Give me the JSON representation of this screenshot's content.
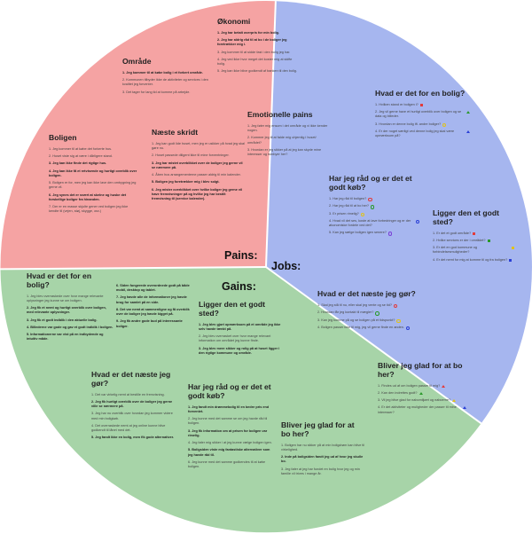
{
  "colors": {
    "pains": "#f5a3a3",
    "jobs": "#a6b6ef",
    "gains": "#a7d4a8",
    "divider": "#ffffff"
  },
  "sections": {
    "pains_label": "Pains:",
    "jobs_label": "Jobs:",
    "gains_label": "Gains:"
  },
  "blocks": [
    {
      "key": "okonomi",
      "title": "Økonomi",
      "items": [
        {
          "text": "1. Jeg har betalt overpris for min bolig.",
          "bold": true
        },
        {
          "text": "2. Jeg har aldrig råd til at bo i de boliger jeg foretrækker mig i.",
          "bold": true
        },
        {
          "text": "3. Jeg kommer til at sidde fast i den bolig jeg har.",
          "bold": false
        },
        {
          "text": "4. Jeg ved ikke hvor meget det koster mig at skifte bolig.",
          "bold": false
        },
        {
          "text": "5. Jeg kan ikke blive godkendt af banken til den bolig.",
          "bold": false
        }
      ]
    },
    {
      "key": "omrade",
      "title": "Område",
      "items": [
        {
          "text": "1. Jeg kommer til at købe bolig i et forkert område.",
          "bold": true
        },
        {
          "text": "2. Kommunen tilbyder ikke de aktiviteter og services i den kvalitet jeg forventer.",
          "bold": false
        },
        {
          "text": "3. Det tager for lang tid at komme på arbejde.",
          "bold": false
        }
      ]
    },
    {
      "key": "emotionelle",
      "title": "Emotionelle pains",
      "items": [
        {
          "text": "1. Jeg føler mig ensom i det område og vi ikke kender nogen.",
          "bold": false
        },
        {
          "text": "2. Kommer jeg til at falde mig uhjemlig i huset/ området?",
          "bold": false
        },
        {
          "text": "3. Hvordan er jeg sikker på at jeg kan skyde mine interesser og hobbyer her?",
          "bold": false
        }
      ]
    },
    {
      "key": "boligen",
      "title": "Boligen",
      "items": [
        {
          "text": "1. Jeg kommer til at købe det forkerte hus.",
          "bold": false
        },
        {
          "text": "2. Huset viste sig at være i dårligere stand.",
          "bold": false
        },
        {
          "text": "3. Jeg kan ikke finde det rigtige hus.",
          "bold": true
        },
        {
          "text": "4. Jeg kan ikke få et retvisende og hurtigt overblik over boligen.",
          "bold": true
        },
        {
          "text": "5. Boligen er for, men jeg kan ikke lave den ombygning jeg gerne vil.",
          "bold": false
        },
        {
          "text": "6. Jeg synes det er svært at skelne og huske det forskellige boliger fra hinanden.",
          "bold": true
        },
        {
          "text": "7. Der er en masse skjulte gener ved boligen jeg ikke kendte til (vejen, støj, skygge, osv.)",
          "bold": false
        }
      ]
    },
    {
      "key": "naeste-skridt",
      "title": "Næste skridt",
      "items": [
        {
          "text": "1. Jeg kan godt lide huset, men jeg er usikker på hvad jeg skal gøre nu.",
          "bold": false
        },
        {
          "text": "2. Huset passede diligent ikke til mine forventninger.",
          "bold": false
        },
        {
          "text": "3. Jeg har mistet overblikket over de boliger jeg gerne vil se nærmere på.",
          "bold": true
        },
        {
          "text": "4. Åben hus arrangementerne passer aldrig til min kalender.",
          "bold": false
        },
        {
          "text": "5. Boligen jeg foretrækker mig i blev solgt.",
          "bold": true
        },
        {
          "text": "6. Jeg mister overblikket over hvilke boliger jeg gerne vil have fremvisninger på og hvilke jeg har bestilt fremvisning til (service kalender).",
          "bold": true
        }
      ]
    },
    {
      "key": "hvad-er-det-for-en-bolig-jobs",
      "title": "Hvad er det for en bolig?",
      "items": [
        {
          "text": "1. Hvilken stand er boligen i?",
          "mark": "#e23b3b",
          "shape": "sq"
        },
        {
          "text": "2. Jeg vil gerne have et hurtigt overblik over boligen og se data og billeder.",
          "mark": "#2a9a2a",
          "shape": "tri"
        },
        {
          "text": "3. Hvordan er denne bolig ift. andre boliger?",
          "mark": "#e0c21a",
          "shape": "c"
        },
        {
          "text": "4. Er der noget særligt ved denne bolig jeg skal være opmærksom på?",
          "mark": "#2a3fd6",
          "shape": "tri"
        }
      ]
    },
    {
      "key": "har-jeg-rad",
      "title": "Har jeg råd og er det et godt køb?",
      "items": [
        {
          "text": "1. Har jeg råd til boligen?",
          "mark": "#e23b3b",
          "shape": "c"
        },
        {
          "text": "2. Har jeg råd til at bo her?",
          "mark": "#2a9a2a",
          "shape": "c"
        },
        {
          "text": "3. Er prisen rimelig?",
          "mark": "#e0c21a",
          "shape": "c"
        },
        {
          "text": "4. Hvad vil det ses, koste at lave forbedringer og er der økonomiske fordele ved det?",
          "mark": "#2a3fd6",
          "shape": "c"
        },
        {
          "text": "5. Kan jeg sælge boligen igen senere?",
          "mark": "#7a3fd6",
          "shape": "c"
        }
      ]
    },
    {
      "key": "ligger-den-godt-jobs",
      "title": "Ligger den et godt sted?",
      "items": [
        {
          "text": "1. Er det et godt område?",
          "mark": "#e23b3b",
          "shape": "sq"
        },
        {
          "text": "2. Hvilke services er der i området?",
          "mark": "#2a9a2a",
          "shape": "sq"
        },
        {
          "text": "3. Er det en god kommune og forbindelsesmuligheder?",
          "mark": "#e0c21a",
          "shape": "sq"
        },
        {
          "text": "4. Er det nemt for mig at komme til og fra boligen?",
          "mark": "#2a3fd6",
          "shape": "sq"
        }
      ]
    },
    {
      "key": "hvad-er-naeste-jobs",
      "title": "Hvad er det næste jeg gør?",
      "items": [
        {
          "text": "1. Skal jeg stå til nu, eller skal jeg vente og se tid?",
          "mark": "#e23b3b",
          "shape": "c"
        },
        {
          "text": "2. Hvordan får jeg kontakt til mægler?",
          "mark": "#2a9a2a",
          "shape": "c"
        },
        {
          "text": "3. Kan jeg komme på og se boligen på et tidspunkt?",
          "mark": "#e0c21a",
          "shape": "c"
        },
        {
          "text": "4. Boligen passer ikke til mig, jeg vil gerne finde en anden.",
          "mark": "#2a3fd6",
          "shape": "c"
        }
      ]
    },
    {
      "key": "bliver-jeg-glad-jobs",
      "title": "Bliver jeg glad for at bo her?",
      "items": [
        {
          "text": "1. Findes ud af om boligen passer til mig?",
          "mark": "#e23b3b",
          "shape": "tri"
        },
        {
          "text": "2. Kan den indrettes godt?",
          "mark": "#2a9a2a",
          "shape": "tri"
        },
        {
          "text": "3. Vil jeg blive glad for nabomiljøet og naboerne?",
          "mark": "#e0c21a",
          "shape": "tri"
        },
        {
          "text": "4. Er det aktiviteter og muligheder der passer til mine interesser?",
          "mark": "#2a3fd6",
          "shape": "tri"
        }
      ]
    },
    {
      "key": "hvad-er-det-for-en-bolig-gains",
      "title": "Hvad er det for en bolig?",
      "items": [
        {
          "text": "1. Jeg blev overraskede over hvor mange relevante oplysninger jeg kunne se om boligen.",
          "bold": false
        },
        {
          "text": "2. Jeg fik et nemt og hurtigt overblik over boligen, med relevante oplysninger.",
          "bold": true
        },
        {
          "text": "3. Jeg fik et godt indblik i den aktuelle bolig.",
          "bold": true
        },
        {
          "text": "4. Billederne var gode og gav et godt indblik i boligen.",
          "bold": true
        },
        {
          "text": "5. Informationerne var vist på en indbydende og intuitiv måde.",
          "bold": true
        }
      ]
    },
    {
      "key": "gains-col2",
      "title": "",
      "items": [
        {
          "text": "6. Siden fungerede overordnede godt på både mobil, desktop og tablet.",
          "bold": true
        },
        {
          "text": "7. Jeg havde alle de informationer jeg havde brug for samlet på en side.",
          "bold": true
        },
        {
          "text": "8. Det var nemt at sammenligne og få overblik over de boliger jeg havde kigget på.",
          "bold": true
        },
        {
          "text": "9. Jeg fik andre gode bud på interessante boliger.",
          "bold": true
        }
      ]
    },
    {
      "key": "ligger-den-godt-gains",
      "title": "Ligger den et godt sted?",
      "items": [
        {
          "text": "1. Jeg blev gjort opmærksom på et område jeg ikke selv havde tænkt på.",
          "bold": true
        },
        {
          "text": "2. Jeg blev overrasket over hvor mange relevant information om området jeg kunne finde.",
          "bold": false
        },
        {
          "text": "3. Jeg blev mere sikker og rolig på at huset ligger i den rigtige kommune og område.",
          "bold": true
        }
      ]
    },
    {
      "key": "hvad-er-naeste-gains",
      "title": "Hvad er det næste jeg gør?",
      "items": [
        {
          "text": "1. Det var virkelig nemt at bestille en fremvisning.",
          "bold": false
        },
        {
          "text": "2. Jeg fik hurtigt overblik over de boliger jeg gerne ville se nærmere på.",
          "bold": true
        },
        {
          "text": "3. Jeg har nu overblik over hvordan jeg kommer videre med min boligkøb.",
          "bold": false
        },
        {
          "text": "4. Det overraskede nemt at jeg online kunne blive godkendt til lånet med det.",
          "bold": false
        },
        {
          "text": "5. Jeg fandt ikke en bolig, men fik gode alternativer.",
          "bold": true
        }
      ]
    },
    {
      "key": "har-jeg-rad-gains",
      "title": "Har jeg råd og er det et godt køb?",
      "items": [
        {
          "text": "1. Jeg fandt min drømmebolig til en bedre pris end forventet.",
          "bold": true
        },
        {
          "text": "2. Jeg kunne med det samme se om jeg havde råd til boligen.",
          "bold": false
        },
        {
          "text": "3. Jeg fik information om at prisen for boligen var rimelig.",
          "bold": true
        },
        {
          "text": "4. Jeg føler mig sikker i at jeg kunne vælge boligen igen.",
          "bold": false
        },
        {
          "text": "5. Boligsiden viste mig fantastiske alternativer som jeg havde råd til.",
          "bold": true
        },
        {
          "text": "6. Jeg kunne med det samme godkendes til at købe boligen.",
          "bold": false
        }
      ]
    },
    {
      "key": "bliver-jeg-glad-gains",
      "title": "Bliver jeg glad for at bo her?",
      "items": [
        {
          "text": "1. Boligen har nu sikker på at min boligdrøm kan blive til virkelighed.",
          "bold": false
        },
        {
          "text": "2. Inde på boligsiden fandt jeg ud af hvor jeg skulle bo.",
          "bold": true
        },
        {
          "text": "3. Jeg føler at jeg har fundet en bolig hvor jeg og min familie vil trives i mange år.",
          "bold": false
        }
      ]
    }
  ]
}
